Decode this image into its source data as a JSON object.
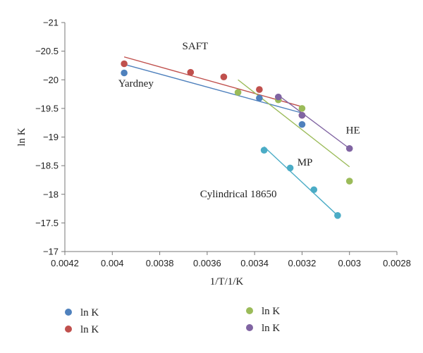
{
  "chart_data": {
    "type": "scatter",
    "xlabel": "1/T/1/K",
    "ylabel": "ln K",
    "xlim": [
      0.0042,
      0.0028
    ],
    "ylim": [
      -17,
      -21
    ],
    "x_ticks": [
      "0.0042",
      "0.004",
      "0.0038",
      "0.0036",
      "0.0034",
      "0.0032",
      "0.003",
      "0.0028"
    ],
    "y_ticks": [
      "−17",
      "−17.5",
      "−18",
      "−18.5",
      "−19",
      "−19.5",
      "−20",
      "−20.5",
      "−21"
    ],
    "grid": false,
    "legend_position": "bottom",
    "series": [
      {
        "name": "ln K",
        "color": "#4f81bd",
        "x": [
          0.00395,
          0.00338,
          0.0032
        ],
        "y": [
          -20.12,
          -19.68,
          -19.22
        ],
        "fit": {
          "x": [
            0.00395,
            0.0032
          ],
          "y": [
            -20.27,
            -19.42
          ]
        }
      },
      {
        "name": "ln K",
        "color": "#c0504d",
        "x": [
          0.00395,
          0.00367,
          0.00353,
          0.00338,
          0.0032
        ],
        "y": [
          -20.28,
          -20.13,
          -20.05,
          -19.83,
          -19.38
        ],
        "fit": {
          "x": [
            0.00395,
            0.0032
          ],
          "y": [
            -20.4,
            -19.53
          ]
        }
      },
      {
        "name": "ln K",
        "color": "#9bbb59",
        "x": [
          0.00347,
          0.0033,
          0.0032,
          0.003
        ],
        "y": [
          -19.78,
          -19.65,
          -19.5,
          -18.23
        ],
        "fit": {
          "x": [
            0.00347,
            0.003
          ],
          "y": [
            -20.0,
            -18.48
          ]
        }
      },
      {
        "name": "ln K",
        "color": "#8064a2",
        "x": [
          0.0033,
          0.0032,
          0.003
        ],
        "y": [
          -19.7,
          -19.38,
          -18.8
        ],
        "fit": {
          "x": [
            0.0033,
            0.003
          ],
          "y": [
            -19.73,
            -18.8
          ]
        }
      },
      {
        "name": "",
        "color": "#4bacc6",
        "x": [
          0.00336,
          0.00325,
          0.00315,
          0.00305
        ],
        "y": [
          -18.77,
          -18.46,
          -18.08,
          -17.63
        ],
        "fit": {
          "x": [
            0.00336,
            0.00305
          ],
          "y": [
            -18.83,
            -17.63
          ]
        }
      }
    ],
    "annotations": [
      {
        "text": "SAFT",
        "x": 0.003705,
        "y": -20.53
      },
      {
        "text": "Yardney",
        "x": 0.003975,
        "y": -19.88
      },
      {
        "text": "HE",
        "x": 0.003015,
        "y": -19.06
      },
      {
        "text": "MP",
        "x": 0.00322,
        "y": -18.5
      },
      {
        "text": "Cylindrical 18650",
        "x": 0.00363,
        "y": -17.95
      }
    ]
  }
}
